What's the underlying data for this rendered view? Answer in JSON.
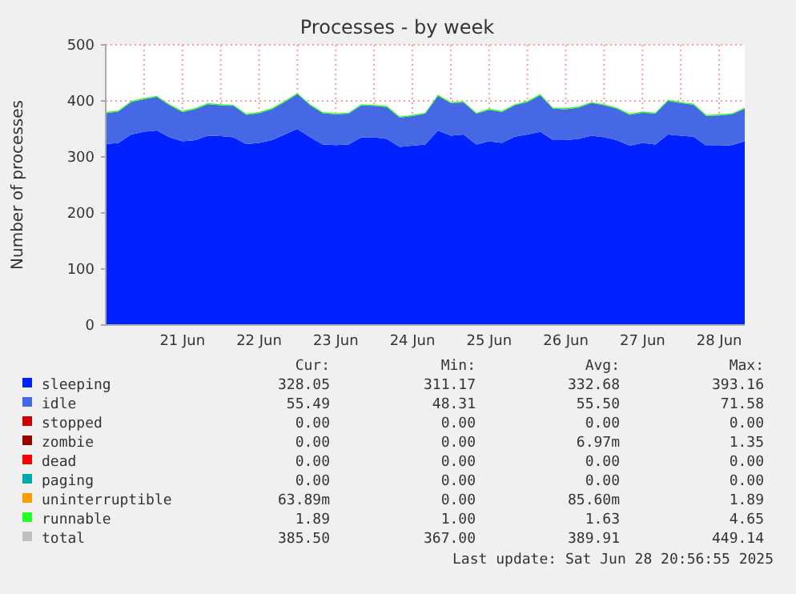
{
  "chart_data": {
    "type": "area",
    "title": "Processes - by week",
    "ylabel": "Number of processes",
    "stacked": true,
    "grid": true,
    "legend": "bottom",
    "x": [
      "2025-06-20T12:00",
      "2025-06-20T16:00",
      "2025-06-20T20:00",
      "2025-06-21T00:00",
      "2025-06-21T04:00",
      "2025-06-21T08:00",
      "2025-06-21T12:00",
      "2025-06-21T16:00",
      "2025-06-21T20:00",
      "2025-06-22T00:00",
      "2025-06-22T04:00",
      "2025-06-22T08:00",
      "2025-06-22T12:00",
      "2025-06-22T16:00",
      "2025-06-22T20:00",
      "2025-06-23T00:00",
      "2025-06-23T04:00",
      "2025-06-23T08:00",
      "2025-06-23T12:00",
      "2025-06-23T16:00",
      "2025-06-23T20:00",
      "2025-06-24T00:00",
      "2025-06-24T04:00",
      "2025-06-24T08:00",
      "2025-06-24T12:00",
      "2025-06-24T16:00",
      "2025-06-24T20:00",
      "2025-06-25T00:00",
      "2025-06-25T04:00",
      "2025-06-25T08:00",
      "2025-06-25T12:00",
      "2025-06-25T16:00",
      "2025-06-25T20:00",
      "2025-06-26T00:00",
      "2025-06-26T04:00",
      "2025-06-26T08:00",
      "2025-06-26T12:00",
      "2025-06-26T16:00",
      "2025-06-26T20:00",
      "2025-06-27T00:00",
      "2025-06-27T04:00",
      "2025-06-27T08:00",
      "2025-06-27T12:00",
      "2025-06-27T16:00",
      "2025-06-27T20:00",
      "2025-06-28T00:00",
      "2025-06-28T04:00",
      "2025-06-28T08:00",
      "2025-06-28T12:00",
      "2025-06-28T16:00",
      "2025-06-28T20:00"
    ],
    "xlim": [
      "2025-06-20T12:00",
      "2025-06-28T20:00"
    ],
    "xticks": [
      {
        "value": "2025-06-21T00:00",
        "label": null
      },
      {
        "value": "2025-06-21T12:00",
        "label": "21 Jun"
      },
      {
        "value": "2025-06-22T00:00",
        "label": null
      },
      {
        "value": "2025-06-22T12:00",
        "label": "22 Jun"
      },
      {
        "value": "2025-06-23T00:00",
        "label": null
      },
      {
        "value": "2025-06-23T12:00",
        "label": "23 Jun"
      },
      {
        "value": "2025-06-24T00:00",
        "label": null
      },
      {
        "value": "2025-06-24T12:00",
        "label": "24 Jun"
      },
      {
        "value": "2025-06-25T00:00",
        "label": null
      },
      {
        "value": "2025-06-25T12:00",
        "label": "25 Jun"
      },
      {
        "value": "2025-06-26T00:00",
        "label": null
      },
      {
        "value": "2025-06-26T12:00",
        "label": "26 Jun"
      },
      {
        "value": "2025-06-27T00:00",
        "label": null
      },
      {
        "value": "2025-06-27T12:00",
        "label": "27 Jun"
      },
      {
        "value": "2025-06-28T00:00",
        "label": null
      },
      {
        "value": "2025-06-28T12:00",
        "label": "28 Jun"
      }
    ],
    "ylim": [
      0,
      500
    ],
    "yticks": [
      0,
      100,
      200,
      300,
      400,
      500
    ],
    "series": [
      {
        "name": "sleeping",
        "color": "#0022ff",
        "values": [
          323,
          325,
          340,
          345,
          347,
          335,
          328,
          330,
          338,
          337,
          335,
          323,
          325,
          330,
          340,
          350,
          335,
          322,
          321,
          322,
          335,
          335,
          332,
          318,
          320,
          322,
          347,
          338,
          340,
          322,
          328,
          325,
          336,
          340,
          345,
          330,
          330,
          332,
          338,
          335,
          330,
          320,
          325,
          322,
          340,
          338,
          336,
          320,
          320,
          321,
          328
        ]
      },
      {
        "name": "idle",
        "color": "#4668e4",
        "values": [
          55,
          56,
          58,
          58,
          60,
          57,
          52,
          55,
          56,
          55,
          56,
          52,
          53,
          55,
          58,
          62,
          57,
          56,
          55,
          55,
          57,
          56,
          57,
          52,
          53,
          55,
          62,
          58,
          57,
          55,
          56,
          55,
          56,
          58,
          65,
          56,
          55,
          56,
          58,
          57,
          56,
          55,
          54,
          55,
          60,
          58,
          57,
          53,
          54,
          55,
          58
        ]
      },
      {
        "name": "stopped",
        "color": "#cc0000",
        "values": [
          null,
          null,
          null,
          null,
          null,
          null,
          null,
          null,
          null,
          null,
          null,
          null,
          null,
          null,
          null,
          null,
          null,
          null,
          null,
          null,
          null,
          null,
          null,
          null,
          null,
          null,
          null,
          null,
          null,
          null,
          null,
          null,
          null,
          null,
          null,
          null,
          null,
          null,
          null,
          null,
          null,
          null,
          null,
          null,
          null,
          null,
          null,
          null,
          null,
          null,
          null
        ]
      },
      {
        "name": "zombie",
        "color": "#990000",
        "values": [
          null,
          null,
          null,
          null,
          null,
          null,
          null,
          null,
          null,
          null,
          null,
          null,
          null,
          null,
          null,
          null,
          null,
          null,
          null,
          null,
          null,
          null,
          null,
          null,
          null,
          null,
          null,
          null,
          null,
          null,
          null,
          null,
          null,
          null,
          null,
          null,
          null,
          null,
          null,
          null,
          null,
          null,
          null,
          null,
          null,
          null,
          null,
          null,
          null,
          null,
          null
        ]
      },
      {
        "name": "dead",
        "color": "#ff0000",
        "values": [
          null,
          null,
          null,
          null,
          null,
          null,
          null,
          null,
          null,
          null,
          null,
          null,
          null,
          null,
          null,
          null,
          null,
          null,
          null,
          null,
          null,
          null,
          null,
          null,
          null,
          null,
          null,
          null,
          null,
          null,
          null,
          null,
          null,
          null,
          null,
          null,
          null,
          null,
          null,
          null,
          null,
          null,
          null,
          null,
          null,
          null,
          null,
          null,
          null,
          null,
          null
        ]
      },
      {
        "name": "paging",
        "color": "#00aaaa",
        "values": [
          null,
          null,
          null,
          null,
          null,
          null,
          null,
          null,
          null,
          null,
          null,
          null,
          null,
          null,
          null,
          null,
          null,
          null,
          null,
          null,
          null,
          null,
          null,
          null,
          null,
          null,
          null,
          null,
          null,
          null,
          null,
          null,
          null,
          null,
          null,
          null,
          null,
          null,
          null,
          null,
          null,
          null,
          null,
          null,
          null,
          null,
          null,
          null,
          null,
          null,
          null
        ]
      },
      {
        "name": "uninterruptible",
        "color": "#ff9900",
        "values": [
          null,
          null,
          null,
          null,
          null,
          null,
          null,
          null,
          null,
          null,
          null,
          null,
          null,
          null,
          null,
          null,
          null,
          null,
          null,
          null,
          null,
          null,
          null,
          null,
          null,
          null,
          null,
          null,
          null,
          null,
          null,
          null,
          null,
          null,
          null,
          null,
          null,
          null,
          null,
          null,
          null,
          null,
          null,
          null,
          null,
          null,
          null,
          null,
          null,
          null,
          null
        ]
      },
      {
        "name": "runnable",
        "color": "#24ff24",
        "values": [
          2,
          2,
          2,
          2,
          2,
          2,
          2,
          2,
          2,
          2,
          2,
          2,
          2,
          2,
          2,
          2,
          2,
          2,
          2,
          2,
          2,
          2,
          2,
          2,
          2,
          2,
          2,
          2,
          2,
          2,
          2,
          2,
          2,
          2,
          2,
          2,
          2,
          2,
          2,
          2,
          2,
          2,
          2,
          2,
          2,
          2,
          2,
          2,
          2,
          2,
          2
        ]
      },
      {
        "name": "total",
        "color": "#c0c0c0",
        "values": [
          null,
          null,
          null,
          null,
          null,
          null,
          null,
          null,
          null,
          null,
          null,
          null,
          null,
          null,
          null,
          null,
          null,
          null,
          null,
          null,
          null,
          null,
          null,
          null,
          null,
          null,
          null,
          null,
          null,
          null,
          null,
          null,
          null,
          null,
          null,
          null,
          null,
          null,
          null,
          null,
          null,
          null,
          null,
          null,
          null,
          null,
          null,
          null,
          null,
          null,
          null
        ]
      }
    ],
    "annotations": [
      "Cur:",
      "Min:",
      "Avg:",
      "Max:",
      "328.05",
      "311.17",
      "332.68",
      "393.16",
      "55.49",
      "48.31",
      "55.50",
      "71.58",
      "0.00",
      "0.00",
      "0.00",
      "0.00",
      "0.00",
      "0.00",
      "6.97m",
      "1.35",
      "0.00",
      "0.00",
      "0.00",
      "0.00",
      "0.00",
      "0.00",
      "0.00",
      "0.00",
      "63.89m",
      "0.00",
      "85.60m",
      "1.89",
      "1.89",
      "1.00",
      "1.63",
      "4.65",
      "385.50",
      "367.00",
      "389.91",
      "449.14",
      "Last update: Sat Jun 28 20:56:55 2025"
    ]
  }
}
